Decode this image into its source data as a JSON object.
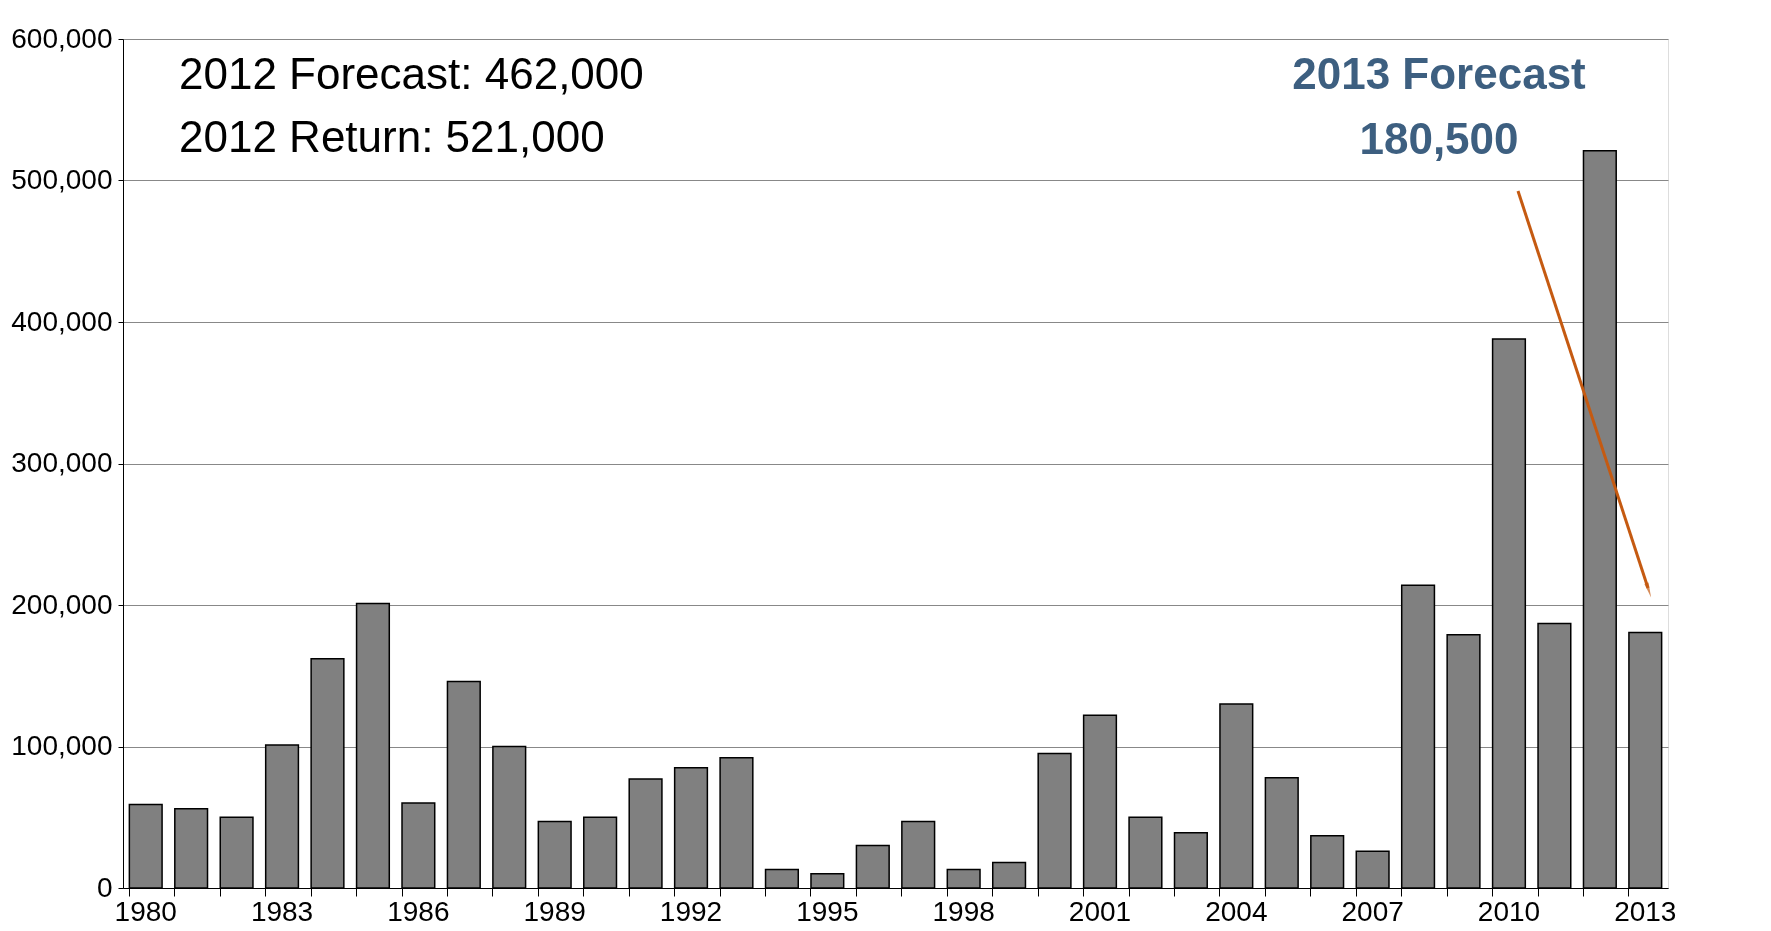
{
  "chart_data": {
    "type": "bar",
    "categories": [
      "1980",
      null,
      null,
      "1983",
      null,
      null,
      "1986",
      null,
      null,
      "1989",
      null,
      null,
      "1992",
      null,
      null,
      "1995",
      null,
      null,
      "1998",
      null,
      null,
      "2001",
      null,
      null,
      "2004",
      null,
      null,
      "2007",
      null,
      null,
      "2010",
      null,
      null,
      "2013"
    ],
    "values": [
      59000,
      56000,
      50000,
      101000,
      162000,
      201000,
      60000,
      146000,
      100000,
      47000,
      50000,
      77000,
      85000,
      92000,
      13000,
      10000,
      30000,
      47000,
      13000,
      18000,
      95000,
      122000,
      50000,
      39000,
      130000,
      78000,
      37000,
      26000,
      214000,
      179000,
      388000,
      187000,
      521000,
      180500
    ],
    "color": "#808080",
    "ylim": [
      0,
      600000
    ],
    "yticks": [
      {
        "value": 0,
        "label": "0"
      },
      {
        "value": 100000,
        "label": "100,000"
      },
      {
        "value": 200000,
        "label": "200,000"
      },
      {
        "value": 300000,
        "label": "300,000"
      },
      {
        "value": 400000,
        "label": "400,000"
      },
      {
        "value": 500000,
        "label": "500,000"
      },
      {
        "value": 600000,
        "label": "600,000"
      }
    ],
    "grid": "y",
    "annotations": [
      "2012 Forecast:  462,000",
      "2012 Return:     521,000",
      "2013 Forecast\n180,500"
    ]
  }
}
